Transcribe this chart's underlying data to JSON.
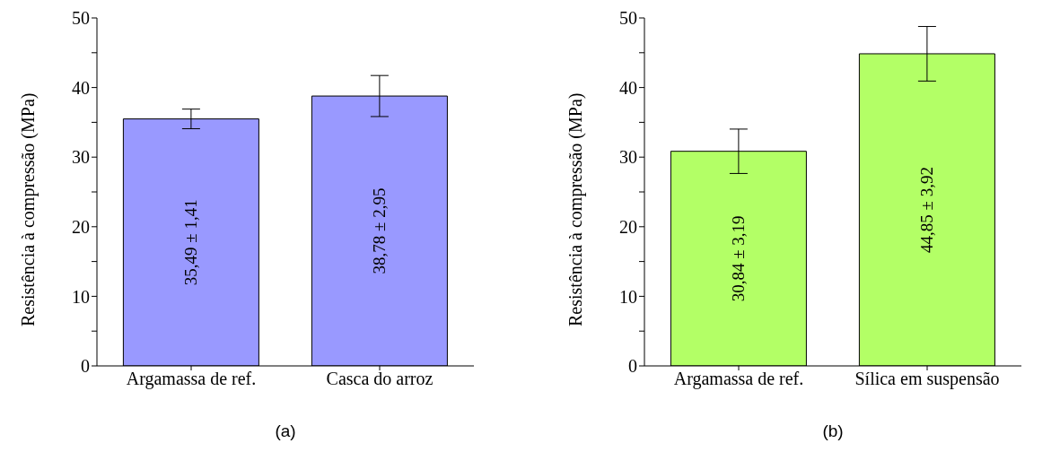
{
  "chart_data": [
    {
      "type": "bar",
      "ylabel": "Resistência à compressão (MPa)",
      "categories": [
        "Argamassa de ref.",
        "Casca do arroz"
      ],
      "series": [
        {
          "color": "#9999ff",
          "values": [
            35.49,
            38.78
          ],
          "errors": [
            1.41,
            2.95
          ],
          "value_labels": [
            "35,49 ± 1,41",
            "38,78 ± 2,95"
          ]
        }
      ],
      "ylim": [
        0,
        50
      ],
      "yticks": [
        0,
        {
          "value": 5,
          "label": null
        },
        10,
        {
          "value": 15,
          "label": null
        },
        20,
        {
          "value": 25,
          "label": null
        },
        30,
        {
          "value": 35,
          "label": null
        },
        40,
        {
          "value": 45,
          "label": null
        },
        50
      ],
      "grid": false,
      "legend": false,
      "annotations": [
        "(a)"
      ]
    },
    {
      "type": "bar",
      "ylabel": "Resistência à compressão (MPa)",
      "categories": [
        "Argamassa de ref.",
        "Sílica em suspensão"
      ],
      "series": [
        {
          "color": "#b3ff66",
          "values": [
            30.84,
            44.85
          ],
          "errors": [
            3.19,
            3.92
          ],
          "value_labels": [
            "30,84 ± 3,19",
            "44,85 ± 3,92"
          ]
        }
      ],
      "ylim": [
        0,
        50
      ],
      "yticks": [
        0,
        {
          "value": 5,
          "label": null
        },
        10,
        {
          "value": 15,
          "label": null
        },
        20,
        {
          "value": 25,
          "label": null
        },
        30,
        {
          "value": 35,
          "label": null
        },
        40,
        {
          "value": 45,
          "label": null
        },
        50
      ],
      "grid": false,
      "legend": false,
      "annotations": [
        "(b)"
      ]
    }
  ]
}
